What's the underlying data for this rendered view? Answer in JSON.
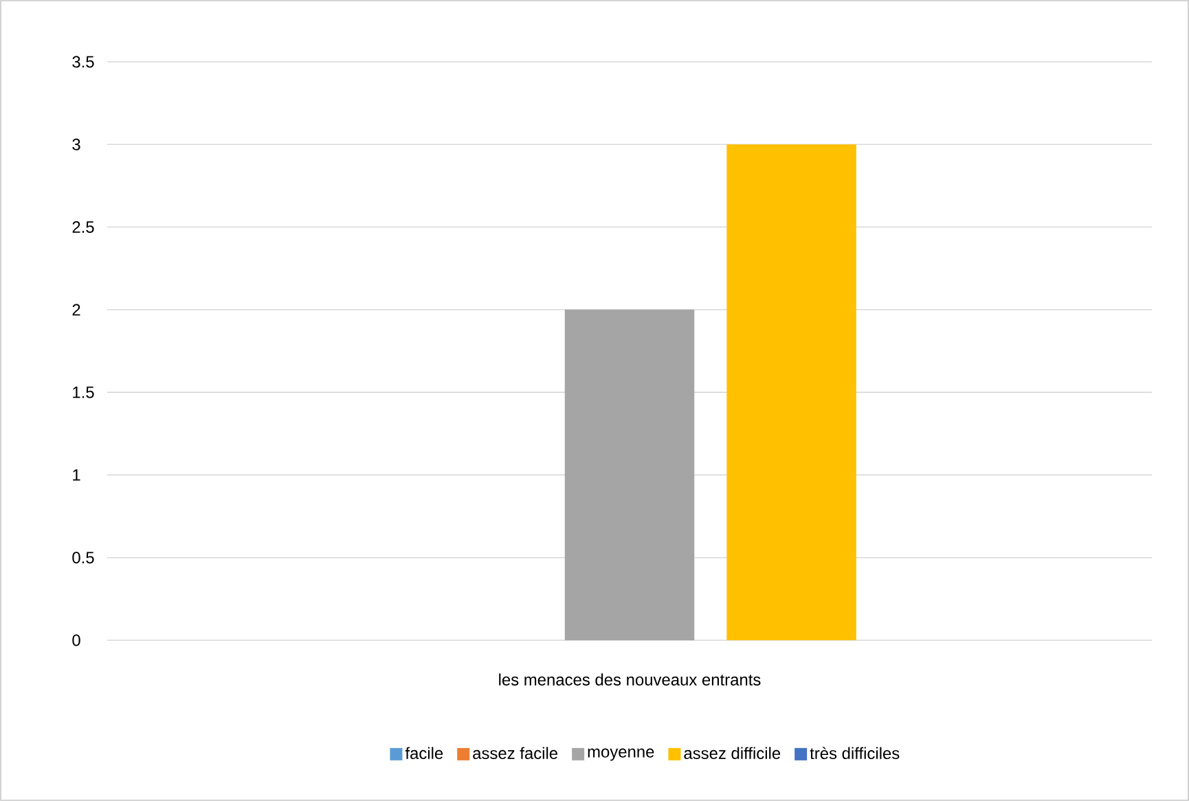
{
  "chart_data": {
    "type": "bar",
    "categories": [
      "les menaces des nouveaux entrants"
    ],
    "series": [
      {
        "name": "facile",
        "color": "#5b9bd5",
        "values": [
          null
        ]
      },
      {
        "name": "assez facile",
        "color": "#ed7d31",
        "values": [
          null
        ]
      },
      {
        "name": "moyenne",
        "color": "#a5a5a5",
        "values": [
          2
        ]
      },
      {
        "name": "assez difficile",
        "color": "#ffc000",
        "values": [
          3
        ]
      },
      {
        "name": "très difficiles",
        "color": "#4472c4",
        "values": [
          null
        ]
      }
    ],
    "ylim": [
      0,
      3.5
    ],
    "yticks": [
      0,
      0.5,
      1,
      1.5,
      2,
      2.5,
      3,
      3.5
    ],
    "grid": "y",
    "legend": "bottom"
  }
}
